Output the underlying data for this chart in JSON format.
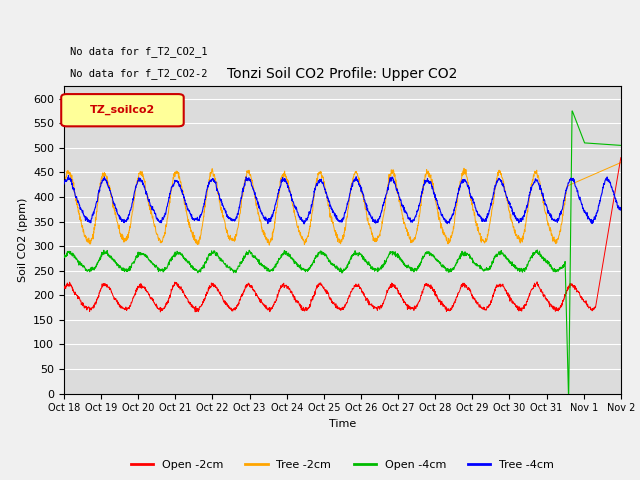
{
  "title": "Tonzi Soil CO2 Profile: Upper CO2",
  "xlabel": "Time",
  "ylabel": "Soil CO2 (ppm)",
  "ylim": [
    0,
    625
  ],
  "yticks": [
    0,
    50,
    100,
    150,
    200,
    250,
    300,
    350,
    400,
    450,
    500,
    550,
    600
  ],
  "annotation1": "No data for f_T2_CO2_1",
  "annotation2": "No data for f_T2_CO2-2",
  "legend_box_label": "TZ_soilco2",
  "legend_entries": [
    "Open -2cm",
    "Tree -2cm",
    "Open -4cm",
    "Tree -4cm"
  ],
  "legend_colors": [
    "#ff0000",
    "#ffa500",
    "#00bb00",
    "#0000ff"
  ],
  "bg_color": "#dcdcdc",
  "plot_bg": "#dcdcdc",
  "n_days": 15.5,
  "open2_base": 195,
  "open2_amp": 25,
  "tree2_base": 375,
  "tree2_amp": 70,
  "open4_base": 268,
  "open4_amp": 18,
  "tree4_base": 390,
  "tree4_amp": 42
}
